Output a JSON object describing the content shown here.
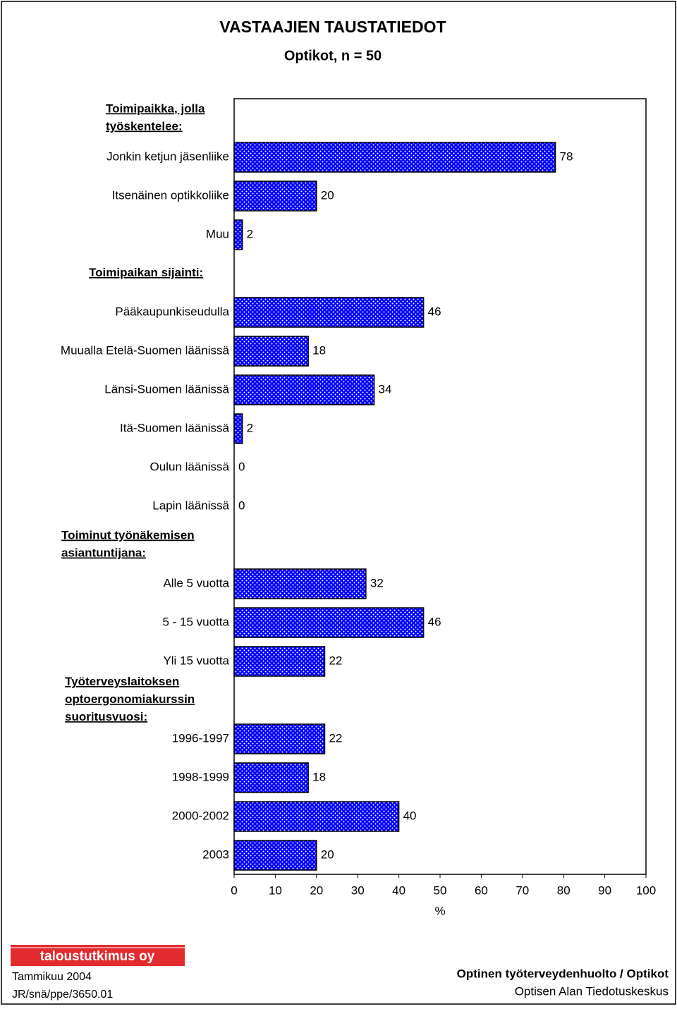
{
  "chart_data": {
    "type": "bar",
    "orientation": "horizontal",
    "title": "VASTAAJIEN TAUSTATIEDOT",
    "subtitle": "Optikot, n = 50",
    "color": "#0000ff",
    "pattern": "dots",
    "groups": [
      {
        "title": [
          "Toimipaikka, jolla",
          "työskentelee:"
        ],
        "categories": [
          "Jonkin ketjun jäsenliike",
          "Itsenäinen optikkoliike",
          "Muu"
        ],
        "values": [
          78,
          20,
          2
        ]
      },
      {
        "title": [
          "Toimipaikan sijainti:"
        ],
        "categories": [
          "Pääkaupunkiseudulla",
          "Muualla Etelä-Suomen läänissä",
          "Länsi-Suomen läänissä",
          "Itä-Suomen läänissä",
          "Oulun läänissä",
          "Lapin läänissä"
        ],
        "values": [
          46,
          18,
          34,
          2,
          0,
          0
        ]
      },
      {
        "title": [
          "Toiminut työnäkemisen",
          "asiantuntijana:"
        ],
        "categories": [
          "Alle 5 vuotta",
          "5 - 15 vuotta",
          "Yli 15 vuotta"
        ],
        "values": [
          32,
          46,
          22
        ]
      },
      {
        "title": [
          "Työterveyslaitoksen",
          "optoergonomiakurssin",
          "suoritusvuosi:"
        ],
        "categories": [
          "1996-1997",
          "1998-1999",
          "2000-2002",
          "2003"
        ],
        "values": [
          22,
          18,
          40,
          20
        ]
      }
    ],
    "xlabel": "%",
    "xlim": [
      0,
      100
    ],
    "xticks": [
      0,
      10,
      20,
      30,
      40,
      50,
      60,
      70,
      80,
      90,
      100
    ],
    "grid": false
  },
  "footer": {
    "logo": "taloustutkimus oy",
    "date": "Tammikuu  2004",
    "code": "JR/snä/ppe/3650.01",
    "project": "Optinen työterveydenhuolto / Optikot",
    "client": "Optisen Alan Tiedotuskeskus"
  }
}
